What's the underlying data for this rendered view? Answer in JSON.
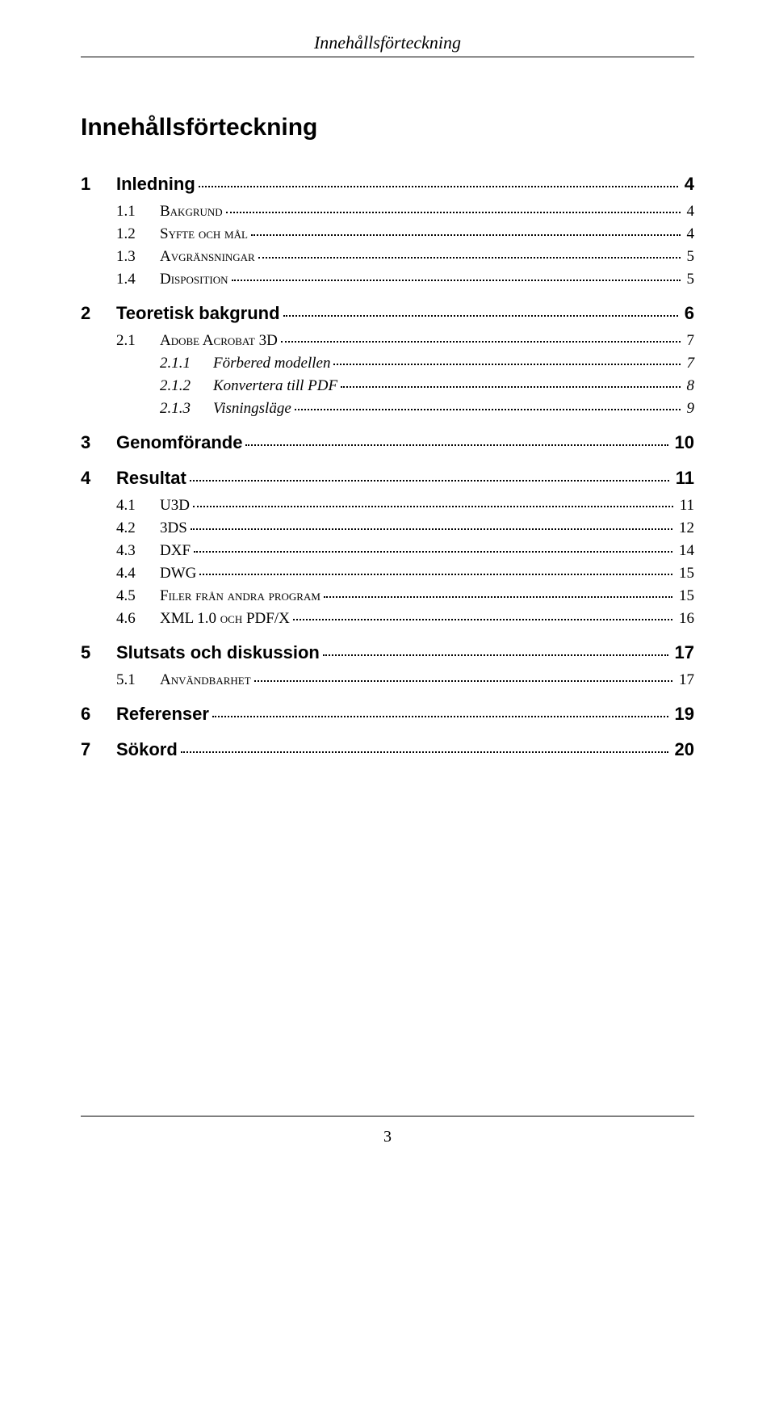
{
  "header": "Innehållsförteckning",
  "headline": "Innehållsförteckning",
  "pageNumber": "3",
  "toc": [
    {
      "level": 1,
      "num": "1",
      "title": "Inledning",
      "page": "4"
    },
    {
      "level": 2,
      "num": "1.1",
      "title": "Bakgrund",
      "page": "4",
      "smallcaps": true
    },
    {
      "level": 2,
      "num": "1.2",
      "title": "Syfte och mål",
      "page": "4",
      "smallcaps": true
    },
    {
      "level": 2,
      "num": "1.3",
      "title": "Avgränsningar",
      "page": "5",
      "smallcaps": true
    },
    {
      "level": 2,
      "num": "1.4",
      "title": "Disposition",
      "page": "5",
      "smallcaps": true
    },
    {
      "level": 1,
      "num": "2",
      "title": "Teoretisk bakgrund",
      "page": "6"
    },
    {
      "level": 2,
      "num": "2.1",
      "title": "Adobe Acrobat 3D",
      "page": "7",
      "smallcaps": true
    },
    {
      "level": 3,
      "num": "2.1.1",
      "title": "Förbered modellen",
      "page": "7"
    },
    {
      "level": 3,
      "num": "2.1.2",
      "title": "Konvertera till PDF",
      "page": "8"
    },
    {
      "level": 3,
      "num": "2.1.3",
      "title": "Visningsläge",
      "page": "9"
    },
    {
      "level": 1,
      "num": "3",
      "title": "Genomförande",
      "page": "10"
    },
    {
      "level": 1,
      "num": "4",
      "title": "Resultat",
      "page": "11"
    },
    {
      "level": 2,
      "num": "4.1",
      "title": "U3D",
      "page": "11"
    },
    {
      "level": 2,
      "num": "4.2",
      "title": "3DS",
      "page": "12"
    },
    {
      "level": 2,
      "num": "4.3",
      "title": "DXF",
      "page": "14"
    },
    {
      "level": 2,
      "num": "4.4",
      "title": "DWG",
      "page": "15"
    },
    {
      "level": 2,
      "num": "4.5",
      "title": "Filer från andra program",
      "page": "15",
      "smallcaps": true
    },
    {
      "level": 2,
      "num": "4.6",
      "title": "XML 1.0 och PDF/X",
      "page": "16",
      "smallcaps": true
    },
    {
      "level": 1,
      "num": "5",
      "title": "Slutsats och diskussion",
      "page": "17"
    },
    {
      "level": 2,
      "num": "5.1",
      "title": "Användbarhet",
      "page": "17",
      "smallcaps": true
    },
    {
      "level": 1,
      "num": "6",
      "title": "Referenser",
      "page": "19"
    },
    {
      "level": 1,
      "num": "7",
      "title": "Sökord",
      "page": "20"
    }
  ]
}
